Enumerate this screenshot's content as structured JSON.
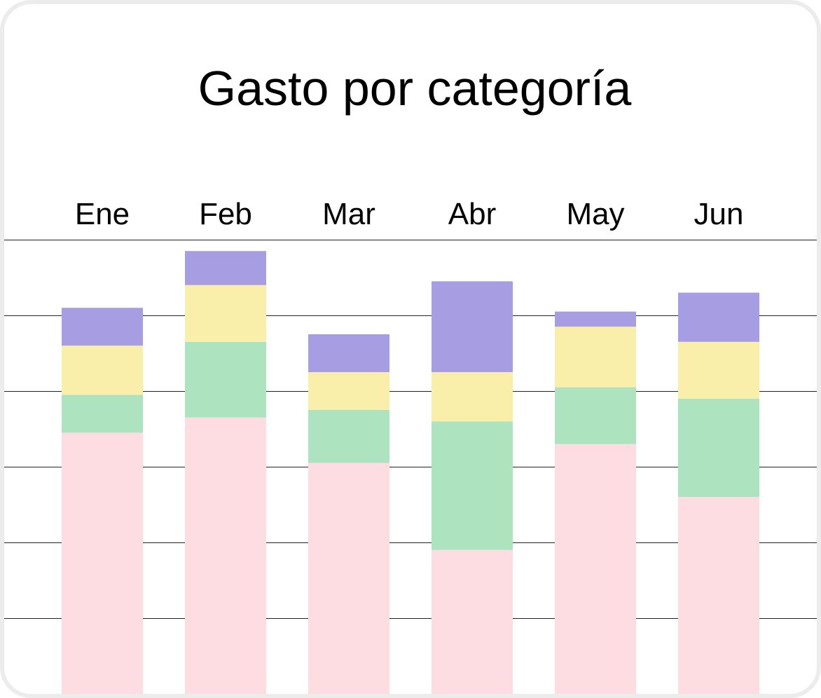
{
  "chart_data": {
    "type": "bar",
    "stacked": true,
    "title": "Gasto por categoría",
    "categories": [
      "Ene",
      "Feb",
      "Mar",
      "Abr",
      "May",
      "Jun"
    ],
    "series": [
      {
        "values": [
          34.5,
          36.5,
          30.5,
          19.0,
          33.0,
          26.0
        ]
      },
      {
        "values": [
          5.0,
          10.0,
          7.0,
          17.0,
          7.5,
          13.0
        ]
      },
      {
        "values": [
          6.5,
          7.5,
          5.0,
          6.5,
          8.0,
          7.5
        ]
      },
      {
        "values": [
          5.0,
          4.5,
          5.0,
          12.0,
          2.0,
          6.5
        ]
      }
    ],
    "colors": [
      "#fddce2",
      "#ade3bf",
      "#f9efaa",
      "#a79de3"
    ],
    "ylim": [
      0,
      60
    ],
    "gridlines": [
      10,
      20,
      30,
      40,
      50,
      60
    ],
    "grid": true,
    "xaxis_position": "top"
  }
}
